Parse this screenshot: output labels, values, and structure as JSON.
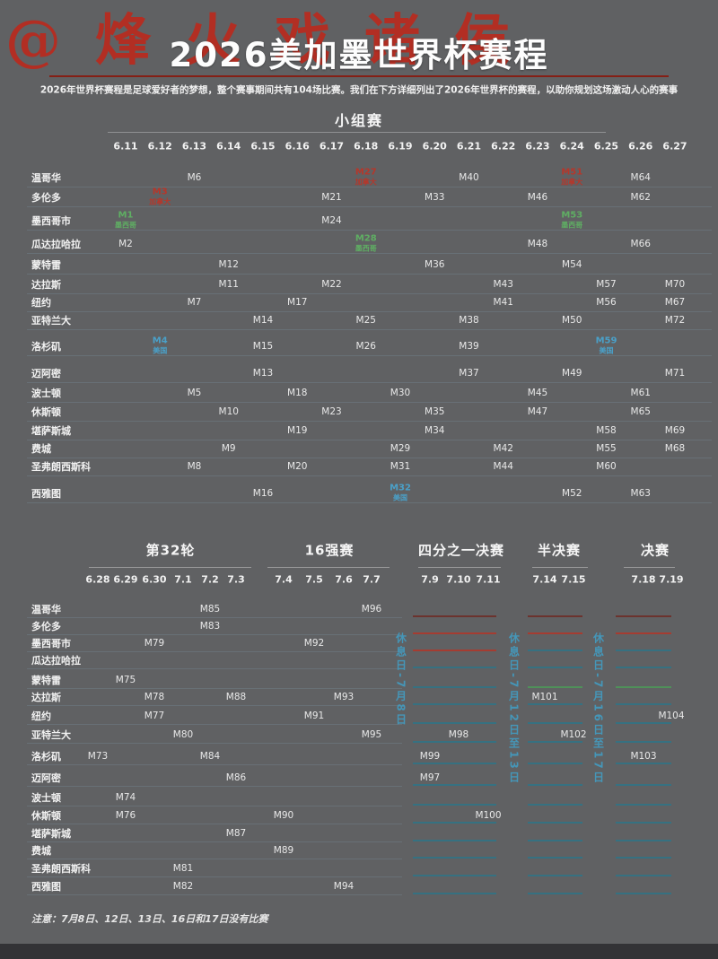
{
  "watermark": "@烽火戏诸侯",
  "header": {
    "title": "2026美加墨世界杯赛程",
    "subtitle": "2026年世界杯赛程是足球爱好者的梦想，整个赛事期间共有104场比赛。我们在下方详细列出了2026年世界杯的赛程，以助你规划这场激动人心的赛事"
  },
  "footnote": "注意：7月8日、12日、13日、16日和17日没有比赛",
  "colors": {
    "background": "#606163",
    "canada_red": "#b5372b",
    "mexico_green": "#5fae63",
    "usa_blue": "#4aa0c8",
    "title_rule_red": "#851f15",
    "rest_day_blue": "#4596b8",
    "row_line_teal": "#2f7486",
    "row_line_red": "#b23628",
    "row_line_dark_red": "#6e2b24",
    "row_line_green": "#4c9a57"
  },
  "chart_data": {
    "type": "table",
    "title": "2026美加墨世界杯赛程",
    "cities": [
      "温哥华",
      "多伦多",
      "墨西哥市",
      "瓜达拉哈拉",
      "蒙特雷",
      "达拉斯",
      "纽约",
      "亚特兰大",
      "洛杉矶",
      "迈阿密",
      "波士顿",
      "休斯顿",
      "堪萨斯城",
      "费城",
      "圣弗朗西斯科",
      "西雅图"
    ],
    "host_legend": [
      "加拿大",
      "墨西哥",
      "美国"
    ],
    "group_stage": {
      "label": "小组赛",
      "dates": [
        "6.11",
        "6.12",
        "6.13",
        "6.14",
        "6.15",
        "6.16",
        "6.17",
        "6.18",
        "6.19",
        "6.20",
        "6.21",
        "6.22",
        "6.23",
        "6.24",
        "6.25",
        "6.26",
        "6.27"
      ],
      "matches": [
        {
          "match": "M1",
          "city": "墨西哥市",
          "date": "6.11",
          "host": "墨西哥"
        },
        {
          "match": "M2",
          "city": "瓜达拉哈拉",
          "date": "6.11"
        },
        {
          "match": "M3",
          "city": "多伦多",
          "date": "6.12",
          "host": "加拿大"
        },
        {
          "match": "M4",
          "city": "洛杉矶",
          "date": "6.12",
          "host": "美国"
        },
        {
          "match": "M5",
          "city": "波士顿",
          "date": "6.13"
        },
        {
          "match": "M6",
          "city": "温哥华",
          "date": "6.13"
        },
        {
          "match": "M7",
          "city": "纽约",
          "date": "6.13"
        },
        {
          "match": "M8",
          "city": "圣弗朗西斯科",
          "date": "6.13"
        },
        {
          "match": "M9",
          "city": "费城",
          "date": "6.14"
        },
        {
          "match": "M10",
          "city": "休斯顿",
          "date": "6.14"
        },
        {
          "match": "M11",
          "city": "达拉斯",
          "date": "6.14"
        },
        {
          "match": "M12",
          "city": "蒙特雷",
          "date": "6.14"
        },
        {
          "match": "M13",
          "city": "迈阿密",
          "date": "6.15"
        },
        {
          "match": "M14",
          "city": "亚特兰大",
          "date": "6.15"
        },
        {
          "match": "M15",
          "city": "洛杉矶",
          "date": "6.15"
        },
        {
          "match": "M16",
          "city": "西雅图",
          "date": "6.15"
        },
        {
          "match": "M17",
          "city": "纽约",
          "date": "6.16"
        },
        {
          "match": "M18",
          "city": "波士顿",
          "date": "6.16"
        },
        {
          "match": "M19",
          "city": "堪萨斯城",
          "date": "6.16"
        },
        {
          "match": "M20",
          "city": "圣弗朗西斯科",
          "date": "6.16"
        },
        {
          "match": "M21",
          "city": "多伦多",
          "date": "6.17"
        },
        {
          "match": "M22",
          "city": "达拉斯",
          "date": "6.17"
        },
        {
          "match": "M23",
          "city": "休斯顿",
          "date": "6.17"
        },
        {
          "match": "M24",
          "city": "墨西哥市",
          "date": "6.17"
        },
        {
          "match": "M25",
          "city": "亚特兰大",
          "date": "6.18"
        },
        {
          "match": "M26",
          "city": "洛杉矶",
          "date": "6.18"
        },
        {
          "match": "M27",
          "city": "温哥华",
          "date": "6.18",
          "host": "加拿大"
        },
        {
          "match": "M28",
          "city": "瓜达拉哈拉",
          "date": "6.18",
          "host": "墨西哥"
        },
        {
          "match": "M29",
          "city": "费城",
          "date": "6.19"
        },
        {
          "match": "M30",
          "city": "波士顿",
          "date": "6.19"
        },
        {
          "match": "M31",
          "city": "圣弗朗西斯科",
          "date": "6.19"
        },
        {
          "match": "M32",
          "city": "西雅图",
          "date": "6.19",
          "host": "美国"
        },
        {
          "match": "M33",
          "city": "多伦多",
          "date": "6.20"
        },
        {
          "match": "M34",
          "city": "堪萨斯城",
          "date": "6.20"
        },
        {
          "match": "M35",
          "city": "休斯顿",
          "date": "6.20"
        },
        {
          "match": "M36",
          "city": "蒙特雷",
          "date": "6.20"
        },
        {
          "match": "M37",
          "city": "迈阿密",
          "date": "6.21"
        },
        {
          "match": "M38",
          "city": "亚特兰大",
          "date": "6.21"
        },
        {
          "match": "M39",
          "city": "洛杉矶",
          "date": "6.21"
        },
        {
          "match": "M40",
          "city": "温哥华",
          "date": "6.21"
        },
        {
          "match": "M41",
          "city": "纽约",
          "date": "6.22"
        },
        {
          "match": "M42",
          "city": "费城",
          "date": "6.22"
        },
        {
          "match": "M43",
          "city": "达拉斯",
          "date": "6.22"
        },
        {
          "match": "M44",
          "city": "圣弗朗西斯科",
          "date": "6.22"
        },
        {
          "match": "M45",
          "city": "波士顿",
          "date": "6.23"
        },
        {
          "match": "M46",
          "city": "多伦多",
          "date": "6.23"
        },
        {
          "match": "M47",
          "city": "休斯顿",
          "date": "6.23"
        },
        {
          "match": "M48",
          "city": "瓜达拉哈拉",
          "date": "6.23"
        },
        {
          "match": "M49",
          "city": "迈阿密",
          "date": "6.24"
        },
        {
          "match": "M50",
          "city": "亚特兰大",
          "date": "6.24"
        },
        {
          "match": "M51",
          "city": "温哥华",
          "date": "6.24",
          "host": "加拿大"
        },
        {
          "match": "M52",
          "city": "西雅图",
          "date": "6.24"
        },
        {
          "match": "M53",
          "city": "墨西哥市",
          "date": "6.24",
          "host": "墨西哥"
        },
        {
          "match": "M54",
          "city": "蒙特雷",
          "date": "6.24"
        },
        {
          "match": "M55",
          "city": "费城",
          "date": "6.25"
        },
        {
          "match": "M56",
          "city": "纽约",
          "date": "6.25"
        },
        {
          "match": "M57",
          "city": "达拉斯",
          "date": "6.25"
        },
        {
          "match": "M58",
          "city": "堪萨斯城",
          "date": "6.25"
        },
        {
          "match": "M59",
          "city": "洛杉矶",
          "date": "6.25",
          "host": "美国"
        },
        {
          "match": "M60",
          "city": "圣弗朗西斯科",
          "date": "6.25"
        },
        {
          "match": "M61",
          "city": "波士顿",
          "date": "6.26"
        },
        {
          "match": "M62",
          "city": "多伦多",
          "date": "6.26"
        },
        {
          "match": "M63",
          "city": "西雅图",
          "date": "6.26"
        },
        {
          "match": "M64",
          "city": "温哥华",
          "date": "6.26"
        },
        {
          "match": "M65",
          "city": "休斯顿",
          "date": "6.26"
        },
        {
          "match": "M66",
          "city": "瓜达拉哈拉",
          "date": "6.26"
        },
        {
          "match": "M67",
          "city": "纽约",
          "date": "6.27"
        },
        {
          "match": "M68",
          "city": "费城",
          "date": "6.27"
        },
        {
          "match": "M69",
          "city": "堪萨斯城",
          "date": "6.27"
        },
        {
          "match": "M70",
          "city": "达拉斯",
          "date": "6.27"
        },
        {
          "match": "M71",
          "city": "迈阿密",
          "date": "6.27"
        },
        {
          "match": "M72",
          "city": "亚特兰大",
          "date": "6.27"
        }
      ]
    },
    "knockout": {
      "rounds": [
        {
          "label": "第32轮",
          "dates": [
            "6.28",
            "6.29",
            "6.30",
            "7.1",
            "7.2",
            "7.3"
          ]
        },
        {
          "label": "16强赛",
          "dates": [
            "7.4",
            "7.5",
            "7.6",
            "7.7"
          ]
        },
        {
          "label": "四分之一决赛",
          "dates": [
            "7.9",
            "7.10",
            "7.11"
          ]
        },
        {
          "label": "半决赛",
          "dates": [
            "7.14",
            "7.15"
          ]
        },
        {
          "label": "决赛",
          "dates": [
            "7.18",
            "7.19"
          ]
        }
      ],
      "matches": [
        {
          "match": "M73",
          "city": "洛杉矶",
          "date": "6.28"
        },
        {
          "match": "M74",
          "city": "波士顿",
          "date": "6.29"
        },
        {
          "match": "M75",
          "city": "蒙特雷",
          "date": "6.29"
        },
        {
          "match": "M76",
          "city": "休斯顿",
          "date": "6.29"
        },
        {
          "match": "M77",
          "city": "纽约",
          "date": "6.30"
        },
        {
          "match": "M78",
          "city": "达拉斯",
          "date": "6.30"
        },
        {
          "match": "M79",
          "city": "墨西哥市",
          "date": "6.30"
        },
        {
          "match": "M80",
          "city": "亚特兰大",
          "date": "7.1"
        },
        {
          "match": "M81",
          "city": "圣弗朗西斯科",
          "date": "7.1"
        },
        {
          "match": "M82",
          "city": "西雅图",
          "date": "7.1"
        },
        {
          "match": "M83",
          "city": "多伦多",
          "date": "7.2"
        },
        {
          "match": "M84",
          "city": "洛杉矶",
          "date": "7.2"
        },
        {
          "match": "M85",
          "city": "温哥华",
          "date": "7.2"
        },
        {
          "match": "M86",
          "city": "迈阿密",
          "date": "7.3"
        },
        {
          "match": "M87",
          "city": "堪萨斯城",
          "date": "7.3"
        },
        {
          "match": "M88",
          "city": "达拉斯",
          "date": "7.3"
        },
        {
          "match": "M89",
          "city": "费城",
          "date": "7.4"
        },
        {
          "match": "M90",
          "city": "休斯顿",
          "date": "7.4"
        },
        {
          "match": "M91",
          "city": "纽约",
          "date": "7.5"
        },
        {
          "match": "M92",
          "city": "墨西哥市",
          "date": "7.5"
        },
        {
          "match": "M93",
          "city": "达拉斯",
          "date": "7.6"
        },
        {
          "match": "M94",
          "city": "西雅图",
          "date": "7.6"
        },
        {
          "match": "M95",
          "city": "亚特兰大",
          "date": "7.7"
        },
        {
          "match": "M96",
          "city": "温哥华",
          "date": "7.7"
        },
        {
          "match": "M97",
          "city": "迈阿密",
          "date": "7.9"
        },
        {
          "match": "M99",
          "city": "洛杉矶",
          "date": "7.9"
        },
        {
          "match": "M98",
          "city": "亚特兰大",
          "date": "7.10"
        },
        {
          "match": "M100",
          "city": "休斯顿",
          "date": "7.11"
        },
        {
          "match": "M101",
          "city": "达拉斯",
          "date": "7.14"
        },
        {
          "match": "M102",
          "city": "亚特兰大",
          "date": "7.15"
        },
        {
          "match": "M103",
          "city": "洛杉矶",
          "date": "7.18"
        },
        {
          "match": "M104",
          "city": "纽约",
          "date": "7.19"
        }
      ],
      "rest_days": [
        "休息日-7月8日",
        "休息日-7月12日至13日",
        "休息日-7月16日至17日"
      ]
    }
  }
}
